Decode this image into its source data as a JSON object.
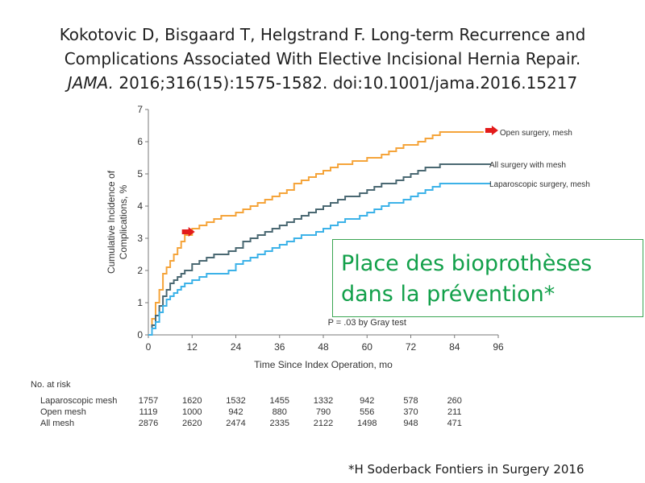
{
  "citation": {
    "line1": "Kokotovic D, Bisgaard T, Helgstrand F. Long-term Recurrence and",
    "line2": "Complications Associated With  Elective Incisional Hernia Repair.",
    "journal": "JAMA.",
    "line3_rest": " 2016;316(15):1575-1582.  doi:10.1001/jama.2016.15217"
  },
  "callout": {
    "line1": "Place des bioprothèses",
    "line2": "dans la prévention*"
  },
  "footnote": "*H Soderback Fontiers in Surgery 2016",
  "colors": {
    "open": "#f5a43a",
    "all": "#4a6872",
    "lap": "#3cb2e8",
    "arrow": "#e31b1b",
    "callout_border": "#3aa552",
    "callout_text": "#12a04a"
  },
  "chart_data": {
    "type": "line",
    "xlabel": "Time Since Index Operation, mo",
    "ylabel": "Cumulative Incidence of Complications, %",
    "xlim": [
      0,
      96
    ],
    "ylim": [
      0,
      7
    ],
    "xticks": [
      0,
      12,
      24,
      36,
      48,
      60,
      72,
      84,
      96
    ],
    "yticks": [
      0,
      1,
      2,
      3,
      4,
      5,
      6,
      7
    ],
    "annotation": "P = .03 by Gray test",
    "series": [
      {
        "name": "Open surgery, mesh",
        "color_key": "open",
        "x": [
          0,
          1,
          2,
          3,
          4,
          5,
          6,
          7,
          8,
          9,
          10,
          12,
          14,
          16,
          18,
          20,
          22,
          24,
          26,
          28,
          30,
          32,
          34,
          36,
          38,
          40,
          42,
          44,
          46,
          48,
          50,
          52,
          54,
          56,
          58,
          60,
          62,
          64,
          66,
          68,
          70,
          72,
          74,
          76,
          78,
          80,
          82,
          84,
          86,
          88,
          90,
          92
        ],
        "y": [
          0,
          0.5,
          1.0,
          1.4,
          1.9,
          2.1,
          2.3,
          2.5,
          2.7,
          2.9,
          3.1,
          3.3,
          3.4,
          3.5,
          3.6,
          3.7,
          3.7,
          3.8,
          3.9,
          4.0,
          4.1,
          4.2,
          4.3,
          4.4,
          4.5,
          4.7,
          4.8,
          4.9,
          5.0,
          5.1,
          5.2,
          5.3,
          5.3,
          5.4,
          5.4,
          5.5,
          5.5,
          5.6,
          5.7,
          5.8,
          5.9,
          5.9,
          6.0,
          6.1,
          6.2,
          6.3,
          6.3,
          6.3,
          6.3,
          6.3,
          6.3,
          6.3
        ]
      },
      {
        "name": "All surgery with mesh",
        "color_key": "all",
        "x": [
          0,
          1,
          2,
          3,
          4,
          5,
          6,
          7,
          8,
          9,
          10,
          12,
          14,
          16,
          18,
          20,
          22,
          24,
          26,
          28,
          30,
          32,
          34,
          36,
          38,
          40,
          42,
          44,
          46,
          48,
          50,
          52,
          54,
          56,
          58,
          60,
          62,
          64,
          66,
          68,
          70,
          72,
          74,
          76,
          78,
          80,
          82,
          84,
          86,
          88,
          90,
          92,
          94
        ],
        "y": [
          0,
          0.3,
          0.6,
          0.9,
          1.2,
          1.4,
          1.6,
          1.7,
          1.8,
          1.9,
          2.0,
          2.2,
          2.3,
          2.4,
          2.5,
          2.5,
          2.6,
          2.7,
          2.9,
          3.0,
          3.1,
          3.2,
          3.3,
          3.4,
          3.5,
          3.6,
          3.7,
          3.8,
          3.9,
          4.0,
          4.1,
          4.2,
          4.3,
          4.3,
          4.4,
          4.5,
          4.6,
          4.7,
          4.7,
          4.8,
          4.9,
          5.0,
          5.1,
          5.2,
          5.2,
          5.3,
          5.3,
          5.3,
          5.3,
          5.3,
          5.3,
          5.3,
          5.3
        ]
      },
      {
        "name": "Laparoscopic surgery, mesh",
        "color_key": "lap",
        "x": [
          0,
          1,
          2,
          3,
          4,
          5,
          6,
          7,
          8,
          9,
          10,
          12,
          14,
          16,
          18,
          20,
          22,
          24,
          26,
          28,
          30,
          32,
          34,
          36,
          38,
          40,
          42,
          44,
          46,
          48,
          50,
          52,
          54,
          56,
          58,
          60,
          62,
          64,
          66,
          68,
          70,
          72,
          74,
          76,
          78,
          80,
          82,
          84,
          86,
          88,
          90,
          92,
          94
        ],
        "y": [
          0,
          0.2,
          0.4,
          0.7,
          0.9,
          1.1,
          1.2,
          1.3,
          1.4,
          1.5,
          1.6,
          1.7,
          1.8,
          1.9,
          1.9,
          1.9,
          2.0,
          2.2,
          2.3,
          2.4,
          2.5,
          2.6,
          2.7,
          2.8,
          2.9,
          3.0,
          3.1,
          3.1,
          3.2,
          3.3,
          3.4,
          3.5,
          3.6,
          3.6,
          3.7,
          3.8,
          3.9,
          4.0,
          4.1,
          4.1,
          4.2,
          4.3,
          4.4,
          4.5,
          4.6,
          4.7,
          4.7,
          4.7,
          4.7,
          4.7,
          4.7,
          4.7,
          4.7
        ]
      }
    ],
    "arrows": [
      {
        "series": "Open surgery, mesh",
        "x": 9,
        "y": 3.2,
        "direction": "right"
      },
      {
        "series": "Open surgery, mesh",
        "x": 92,
        "y": 6.35,
        "direction": "right"
      }
    ]
  },
  "risk_table": {
    "title": "No. at risk",
    "months": [
      0,
      12,
      24,
      36,
      48,
      60,
      72,
      84
    ],
    "rows": [
      {
        "label": "Laparoscopic mesh",
        "values": [
          "1757",
          "1620",
          "1532",
          "1455",
          "1332",
          "942",
          "578",
          "260"
        ]
      },
      {
        "label": "Open mesh",
        "values": [
          "1119",
          "1000",
          "942",
          "880",
          "790",
          "556",
          "370",
          "211"
        ]
      },
      {
        "label": "All mesh",
        "values": [
          "2876",
          "2620",
          "2474",
          "2335",
          "2122",
          "1498",
          "948",
          "471"
        ]
      }
    ]
  }
}
